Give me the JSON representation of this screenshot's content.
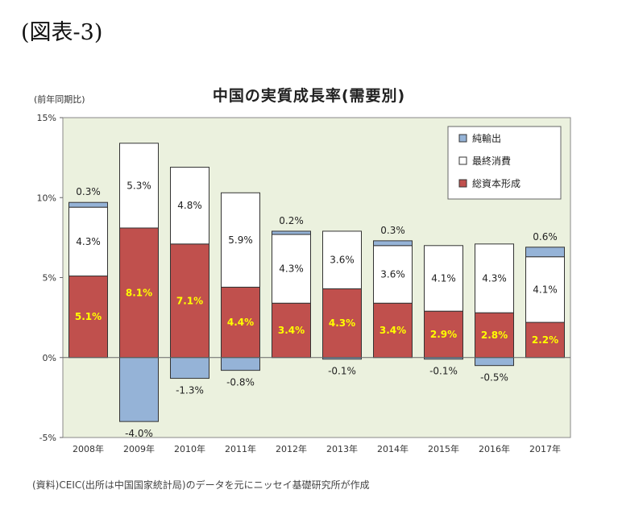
{
  "figure_label": "(図表-3)",
  "source_note": "(資料)CEIC(出所は中国国家統計局)のデータを元にニッセイ基礎研究所が作成",
  "colors": {
    "net_exports": "#95b3d7",
    "final_consumption": "#ffffff",
    "capital_formation": "#c0504d",
    "capital_label": "#ffff00",
    "plot_bg": "#ebf1de"
  },
  "chart_data": {
    "type": "bar",
    "stacked": true,
    "title": "中国の実質成長率(需要別)",
    "ylabel": "(前年同期比)",
    "ylim": [
      -5,
      15
    ],
    "yticks": [
      -5,
      0,
      5,
      10,
      15
    ],
    "ytick_labels": [
      "-5%",
      "0%",
      "5%",
      "10%",
      "15%"
    ],
    "categories": [
      "2008年",
      "2009年",
      "2010年",
      "2011年",
      "2012年",
      "2013年",
      "2014年",
      "2015年",
      "2016年",
      "2017年"
    ],
    "series": [
      {
        "name": "総資本形成",
        "values": [
          5.1,
          8.1,
          7.1,
          4.4,
          3.4,
          4.3,
          3.4,
          2.9,
          2.8,
          2.2
        ],
        "labels": [
          "5.1%",
          "8.1%",
          "7.1%",
          "4.4%",
          "3.4%",
          "4.3%",
          "3.4%",
          "2.9%",
          "2.8%",
          "2.2%"
        ]
      },
      {
        "name": "最終消費",
        "values": [
          4.3,
          5.3,
          4.8,
          5.9,
          4.3,
          3.6,
          3.6,
          4.1,
          4.3,
          4.1
        ],
        "labels": [
          "4.3%",
          "5.3%",
          "4.8%",
          "5.9%",
          "4.3%",
          "3.6%",
          "3.6%",
          "4.1%",
          "4.3%",
          "4.1%"
        ]
      },
      {
        "name": "純輸出",
        "values": [
          0.3,
          -4.0,
          -1.3,
          -0.8,
          0.2,
          -0.1,
          0.3,
          -0.1,
          -0.5,
          0.6
        ],
        "labels": [
          "0.3%",
          "-4.0%",
          "-1.3%",
          "-0.8%",
          "0.2%",
          "-0.1%",
          "0.3%",
          "-0.1%",
          "-0.5%",
          "0.6%"
        ]
      }
    ],
    "legend": {
      "placement": "top-right",
      "items": [
        "純輸出",
        "最終消費",
        "総資本形成"
      ]
    },
    "grid": false
  }
}
